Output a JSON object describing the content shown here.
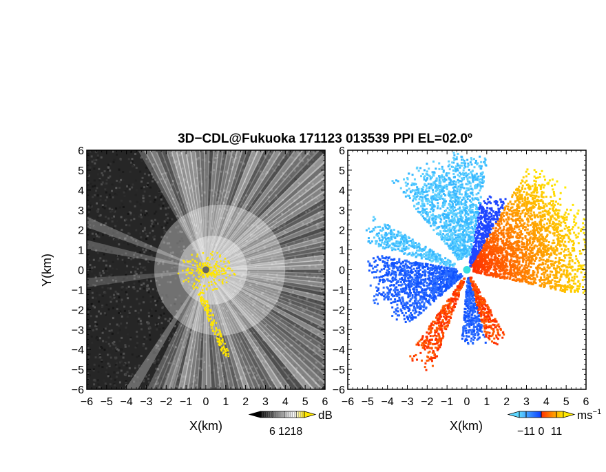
{
  "title": "3D−CDL@Fukuoka 171123 013539 PPI EL=02.0º",
  "chart_data": [
    {
      "type": "heatmap",
      "panel": "left",
      "quantity": "",
      "xlabel": "X(km)",
      "ylabel": "Y(km)",
      "xlim": [
        -6,
        6
      ],
      "ylim": [
        -6,
        6
      ],
      "xticks": [
        -6,
        -5,
        -4,
        -3,
        -2,
        -1,
        0,
        1,
        2,
        3,
        4,
        5,
        6
      ],
      "yticks": [
        -6,
        -5,
        -4,
        -3,
        -2,
        -1,
        0,
        1,
        2,
        3,
        4,
        5,
        6
      ],
      "x_tick_labels": [
        "−6",
        "−5",
        "−4",
        "−3",
        "−2",
        "−1",
        "0",
        "1",
        "2",
        "3",
        "4",
        "5",
        "6"
      ],
      "y_tick_labels": [
        "−6",
        "−5",
        "−4",
        "−3",
        "−2",
        "−1",
        "0",
        "1",
        "2",
        "3",
        "4",
        "5",
        "6"
      ],
      "colorbar": {
        "unit": "dB",
        "ticks": [
          6,
          12,
          18
        ],
        "tick_labels": [
          "6",
          "12",
          "18"
        ],
        "colors": [
          "#000000",
          "#ffffff",
          "#ffe600"
        ]
      },
      "radar_position": [
        0,
        0
      ],
      "marker_color": "#666666"
    },
    {
      "type": "heatmap",
      "panel": "right",
      "quantity": "",
      "xlabel": "X(km)",
      "ylabel": "",
      "xlim": [
        -6,
        6
      ],
      "ylim": [
        -6,
        6
      ],
      "xticks": [
        -6,
        -5,
        -4,
        -3,
        -2,
        -1,
        0,
        1,
        2,
        3,
        4,
        5,
        6
      ],
      "yticks": [
        -6,
        -5,
        -4,
        -3,
        -2,
        -1,
        0,
        1,
        2,
        3,
        4,
        5,
        6
      ],
      "x_tick_labels": [
        "−6",
        "−5",
        "−4",
        "−3",
        "−2",
        "−1",
        "0",
        "1",
        "2",
        "3",
        "4",
        "5",
        "6"
      ],
      "y_tick_labels": [
        "−6",
        "−5",
        "−4",
        "−3",
        "−2",
        "−1",
        "0",
        "1",
        "2",
        "3",
        "4",
        "5",
        "6"
      ],
      "colorbar": {
        "unit": "ms",
        "unit_exponent": "−1",
        "ticks": [
          -11,
          0,
          11
        ],
        "tick_labels": [
          "−11",
          "0",
          "11"
        ],
        "colors": [
          "#5fd8ff",
          "#0a3cff",
          "#ff3000",
          "#ffe800"
        ]
      },
      "radar_position": [
        0,
        0
      ],
      "marker_color": "#35dde0"
    }
  ]
}
